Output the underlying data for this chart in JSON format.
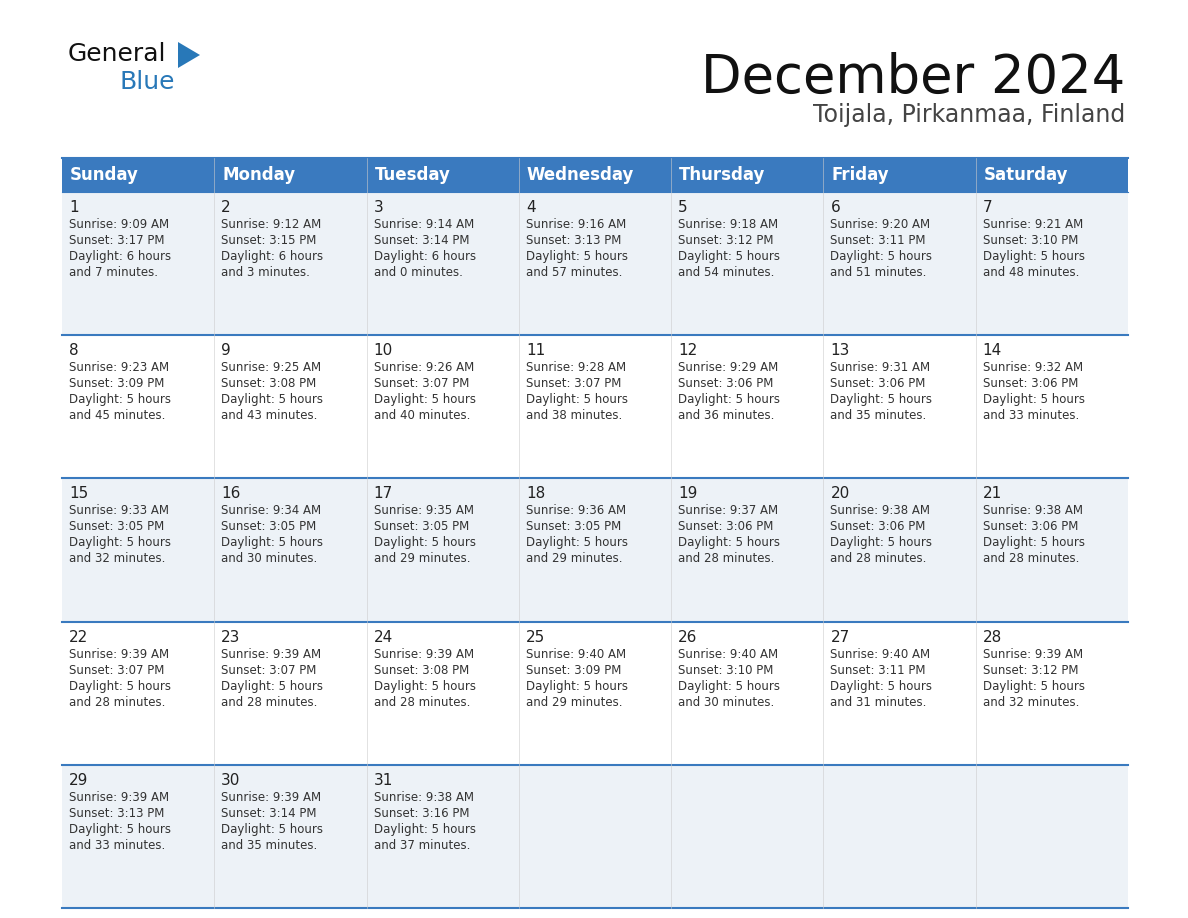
{
  "title": "December 2024",
  "subtitle": "Toijala, Pirkanmaa, Finland",
  "header_color": "#3a7abf",
  "header_text_color": "#ffffff",
  "background_color": "#ffffff",
  "cell_bg_even": "#edf2f7",
  "cell_bg_odd": "#ffffff",
  "day_headers": [
    "Sunday",
    "Monday",
    "Tuesday",
    "Wednesday",
    "Thursday",
    "Friday",
    "Saturday"
  ],
  "days": [
    {
      "day": 1,
      "col": 0,
      "row": 0,
      "sunrise": "9:09 AM",
      "sunset": "3:17 PM",
      "daylight_h": "6 hours",
      "daylight_m": "and 7 minutes."
    },
    {
      "day": 2,
      "col": 1,
      "row": 0,
      "sunrise": "9:12 AM",
      "sunset": "3:15 PM",
      "daylight_h": "6 hours",
      "daylight_m": "and 3 minutes."
    },
    {
      "day": 3,
      "col": 2,
      "row": 0,
      "sunrise": "9:14 AM",
      "sunset": "3:14 PM",
      "daylight_h": "6 hours",
      "daylight_m": "and 0 minutes."
    },
    {
      "day": 4,
      "col": 3,
      "row": 0,
      "sunrise": "9:16 AM",
      "sunset": "3:13 PM",
      "daylight_h": "5 hours",
      "daylight_m": "and 57 minutes."
    },
    {
      "day": 5,
      "col": 4,
      "row": 0,
      "sunrise": "9:18 AM",
      "sunset": "3:12 PM",
      "daylight_h": "5 hours",
      "daylight_m": "and 54 minutes."
    },
    {
      "day": 6,
      "col": 5,
      "row": 0,
      "sunrise": "9:20 AM",
      "sunset": "3:11 PM",
      "daylight_h": "5 hours",
      "daylight_m": "and 51 minutes."
    },
    {
      "day": 7,
      "col": 6,
      "row": 0,
      "sunrise": "9:21 AM",
      "sunset": "3:10 PM",
      "daylight_h": "5 hours",
      "daylight_m": "and 48 minutes."
    },
    {
      "day": 8,
      "col": 0,
      "row": 1,
      "sunrise": "9:23 AM",
      "sunset": "3:09 PM",
      "daylight_h": "5 hours",
      "daylight_m": "and 45 minutes."
    },
    {
      "day": 9,
      "col": 1,
      "row": 1,
      "sunrise": "9:25 AM",
      "sunset": "3:08 PM",
      "daylight_h": "5 hours",
      "daylight_m": "and 43 minutes."
    },
    {
      "day": 10,
      "col": 2,
      "row": 1,
      "sunrise": "9:26 AM",
      "sunset": "3:07 PM",
      "daylight_h": "5 hours",
      "daylight_m": "and 40 minutes."
    },
    {
      "day": 11,
      "col": 3,
      "row": 1,
      "sunrise": "9:28 AM",
      "sunset": "3:07 PM",
      "daylight_h": "5 hours",
      "daylight_m": "and 38 minutes."
    },
    {
      "day": 12,
      "col": 4,
      "row": 1,
      "sunrise": "9:29 AM",
      "sunset": "3:06 PM",
      "daylight_h": "5 hours",
      "daylight_m": "and 36 minutes."
    },
    {
      "day": 13,
      "col": 5,
      "row": 1,
      "sunrise": "9:31 AM",
      "sunset": "3:06 PM",
      "daylight_h": "5 hours",
      "daylight_m": "and 35 minutes."
    },
    {
      "day": 14,
      "col": 6,
      "row": 1,
      "sunrise": "9:32 AM",
      "sunset": "3:06 PM",
      "daylight_h": "5 hours",
      "daylight_m": "and 33 minutes."
    },
    {
      "day": 15,
      "col": 0,
      "row": 2,
      "sunrise": "9:33 AM",
      "sunset": "3:05 PM",
      "daylight_h": "5 hours",
      "daylight_m": "and 32 minutes."
    },
    {
      "day": 16,
      "col": 1,
      "row": 2,
      "sunrise": "9:34 AM",
      "sunset": "3:05 PM",
      "daylight_h": "5 hours",
      "daylight_m": "and 30 minutes."
    },
    {
      "day": 17,
      "col": 2,
      "row": 2,
      "sunrise": "9:35 AM",
      "sunset": "3:05 PM",
      "daylight_h": "5 hours",
      "daylight_m": "and 29 minutes."
    },
    {
      "day": 18,
      "col": 3,
      "row": 2,
      "sunrise": "9:36 AM",
      "sunset": "3:05 PM",
      "daylight_h": "5 hours",
      "daylight_m": "and 29 minutes."
    },
    {
      "day": 19,
      "col": 4,
      "row": 2,
      "sunrise": "9:37 AM",
      "sunset": "3:06 PM",
      "daylight_h": "5 hours",
      "daylight_m": "and 28 minutes."
    },
    {
      "day": 20,
      "col": 5,
      "row": 2,
      "sunrise": "9:38 AM",
      "sunset": "3:06 PM",
      "daylight_h": "5 hours",
      "daylight_m": "and 28 minutes."
    },
    {
      "day": 21,
      "col": 6,
      "row": 2,
      "sunrise": "9:38 AM",
      "sunset": "3:06 PM",
      "daylight_h": "5 hours",
      "daylight_m": "and 28 minutes."
    },
    {
      "day": 22,
      "col": 0,
      "row": 3,
      "sunrise": "9:39 AM",
      "sunset": "3:07 PM",
      "daylight_h": "5 hours",
      "daylight_m": "and 28 minutes."
    },
    {
      "day": 23,
      "col": 1,
      "row": 3,
      "sunrise": "9:39 AM",
      "sunset": "3:07 PM",
      "daylight_h": "5 hours",
      "daylight_m": "and 28 minutes."
    },
    {
      "day": 24,
      "col": 2,
      "row": 3,
      "sunrise": "9:39 AM",
      "sunset": "3:08 PM",
      "daylight_h": "5 hours",
      "daylight_m": "and 28 minutes."
    },
    {
      "day": 25,
      "col": 3,
      "row": 3,
      "sunrise": "9:40 AM",
      "sunset": "3:09 PM",
      "daylight_h": "5 hours",
      "daylight_m": "and 29 minutes."
    },
    {
      "day": 26,
      "col": 4,
      "row": 3,
      "sunrise": "9:40 AM",
      "sunset": "3:10 PM",
      "daylight_h": "5 hours",
      "daylight_m": "and 30 minutes."
    },
    {
      "day": 27,
      "col": 5,
      "row": 3,
      "sunrise": "9:40 AM",
      "sunset": "3:11 PM",
      "daylight_h": "5 hours",
      "daylight_m": "and 31 minutes."
    },
    {
      "day": 28,
      "col": 6,
      "row": 3,
      "sunrise": "9:39 AM",
      "sunset": "3:12 PM",
      "daylight_h": "5 hours",
      "daylight_m": "and 32 minutes."
    },
    {
      "day": 29,
      "col": 0,
      "row": 4,
      "sunrise": "9:39 AM",
      "sunset": "3:13 PM",
      "daylight_h": "5 hours",
      "daylight_m": "and 33 minutes."
    },
    {
      "day": 30,
      "col": 1,
      "row": 4,
      "sunrise": "9:39 AM",
      "sunset": "3:14 PM",
      "daylight_h": "5 hours",
      "daylight_m": "and 35 minutes."
    },
    {
      "day": 31,
      "col": 2,
      "row": 4,
      "sunrise": "9:38 AM",
      "sunset": "3:16 PM",
      "daylight_h": "5 hours",
      "daylight_m": "and 37 minutes."
    }
  ],
  "num_rows": 5,
  "logo_color": "#2878b8",
  "title_fontsize": 38,
  "subtitle_fontsize": 17,
  "header_fontsize": 12,
  "day_num_fontsize": 11,
  "cell_text_fontsize": 8.5
}
